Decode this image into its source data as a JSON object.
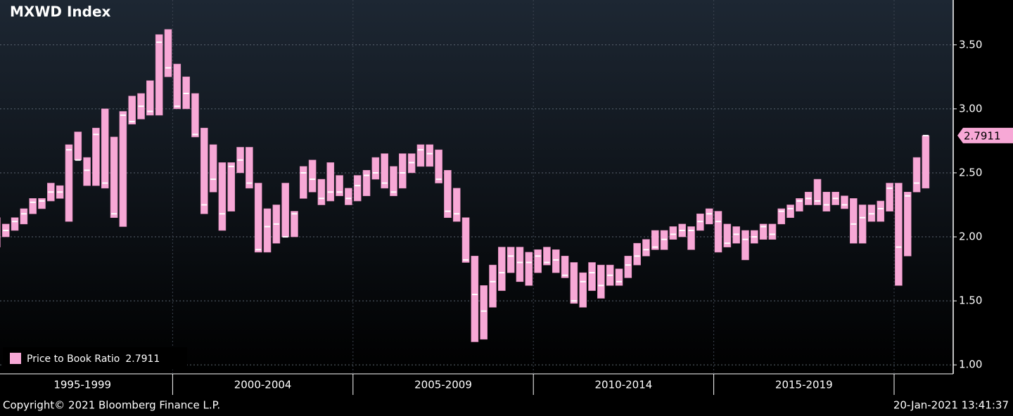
{
  "chart_data": {
    "type": "range_bar",
    "title": "MXWD Index",
    "periods": [
      "1995-1999",
      "2000-2004",
      "2005-2009",
      "2010-2014",
      "2015-2019"
    ],
    "series": [
      {
        "name": "Price to Book Ratio",
        "color": "#f7a8d6",
        "low": [
          1.92,
          2.0,
          2.05,
          2.1,
          2.18,
          2.22,
          2.28,
          2.3,
          2.12,
          2.6,
          2.4,
          2.4,
          2.38,
          2.15,
          2.08,
          2.88,
          2.92,
          2.95,
          2.95,
          3.25,
          3.0,
          3.0,
          2.78,
          2.18,
          2.35,
          2.05,
          2.2,
          2.5,
          2.38,
          1.88,
          1.88,
          1.95,
          2.0,
          2.0,
          2.3,
          2.35,
          2.25,
          2.28,
          2.32,
          2.25,
          2.28,
          2.32,
          2.45,
          2.38,
          2.32,
          2.38,
          2.5,
          2.55,
          2.55,
          2.42,
          2.15,
          2.12,
          1.8,
          1.18,
          1.2,
          1.45,
          1.58,
          1.72,
          1.65,
          1.62,
          1.72,
          1.78,
          1.72,
          1.68,
          1.48,
          1.45,
          1.58,
          1.52,
          1.62,
          1.62,
          1.68,
          1.78,
          1.85,
          1.9,
          1.9,
          1.98,
          2.0,
          1.9,
          2.05,
          2.1,
          1.88,
          1.92,
          1.95,
          1.82,
          1.95,
          1.98,
          1.98,
          2.1,
          2.15,
          2.2,
          2.25,
          2.25,
          2.2,
          2.25,
          2.22,
          1.95,
          1.95,
          2.12,
          2.12,
          2.2,
          1.62,
          1.85,
          2.35,
          2.38
        ],
        "high": [
          2.15,
          2.1,
          2.15,
          2.22,
          2.3,
          2.3,
          2.42,
          2.4,
          2.72,
          2.82,
          2.62,
          2.85,
          3.0,
          2.78,
          2.98,
          3.1,
          3.12,
          3.22,
          3.58,
          3.62,
          3.35,
          3.25,
          3.12,
          2.85,
          2.72,
          2.58,
          2.58,
          2.7,
          2.7,
          2.42,
          2.22,
          2.25,
          2.42,
          2.2,
          2.55,
          2.6,
          2.45,
          2.58,
          2.48,
          2.38,
          2.48,
          2.52,
          2.62,
          2.65,
          2.55,
          2.65,
          2.65,
          2.72,
          2.72,
          2.68,
          2.52,
          2.38,
          2.15,
          1.85,
          1.62,
          1.78,
          1.92,
          1.92,
          1.92,
          1.88,
          1.9,
          1.92,
          1.9,
          1.85,
          1.8,
          1.72,
          1.8,
          1.78,
          1.78,
          1.75,
          1.85,
          1.95,
          1.98,
          2.05,
          2.05,
          2.08,
          2.1,
          2.08,
          2.18,
          2.22,
          2.2,
          2.1,
          2.08,
          2.05,
          2.05,
          2.1,
          2.1,
          2.22,
          2.25,
          2.3,
          2.35,
          2.45,
          2.35,
          2.35,
          2.32,
          2.3,
          2.25,
          2.25,
          2.28,
          2.42,
          2.42,
          2.35,
          2.62,
          2.7911
        ],
        "close": [
          2.02,
          2.05,
          2.12,
          2.18,
          2.27,
          2.28,
          2.35,
          2.35,
          2.68,
          2.6,
          2.52,
          2.8,
          2.42,
          2.18,
          2.95,
          2.9,
          3.02,
          2.98,
          3.52,
          3.32,
          3.02,
          3.12,
          2.8,
          2.25,
          2.45,
          2.18,
          2.55,
          2.6,
          2.42,
          1.9,
          2.08,
          2.1,
          2.0,
          2.18,
          2.5,
          2.45,
          2.3,
          2.35,
          2.35,
          2.3,
          2.4,
          2.48,
          2.5,
          2.42,
          2.35,
          2.5,
          2.58,
          2.68,
          2.65,
          2.45,
          2.2,
          2.18,
          1.82,
          1.55,
          1.42,
          1.65,
          1.72,
          1.85,
          1.8,
          1.8,
          1.85,
          1.8,
          1.82,
          1.7,
          1.5,
          1.65,
          1.72,
          1.62,
          1.7,
          1.65,
          1.78,
          1.85,
          1.9,
          1.92,
          1.98,
          2.02,
          2.05,
          2.05,
          2.12,
          2.18,
          2.12,
          1.95,
          2.02,
          1.98,
          2.0,
          2.08,
          2.02,
          2.2,
          2.22,
          2.28,
          2.3,
          2.28,
          2.25,
          2.3,
          2.25,
          2.1,
          2.15,
          2.18,
          2.22,
          2.38,
          1.92,
          2.32,
          2.42,
          2.7911
        ]
      }
    ],
    "last_label": "2.7911",
    "ylim": [
      0.93,
      3.85
    ],
    "yticks": [
      {
        "value": 1.0,
        "label": "1.00"
      },
      {
        "value": 1.5,
        "label": "1.50"
      },
      {
        "value": 2.0,
        "label": "2.00"
      },
      {
        "value": 2.5,
        "label": "2.50"
      },
      {
        "value": 3.0,
        "label": "3.00"
      },
      {
        "value": 3.5,
        "label": "3.50"
      }
    ],
    "grid": true,
    "legend": "bottom-left",
    "footer_left": "Copyright© 2021 Bloomberg Finance L.P.",
    "footer_right": "20-Jan-2021 13:41:37"
  }
}
